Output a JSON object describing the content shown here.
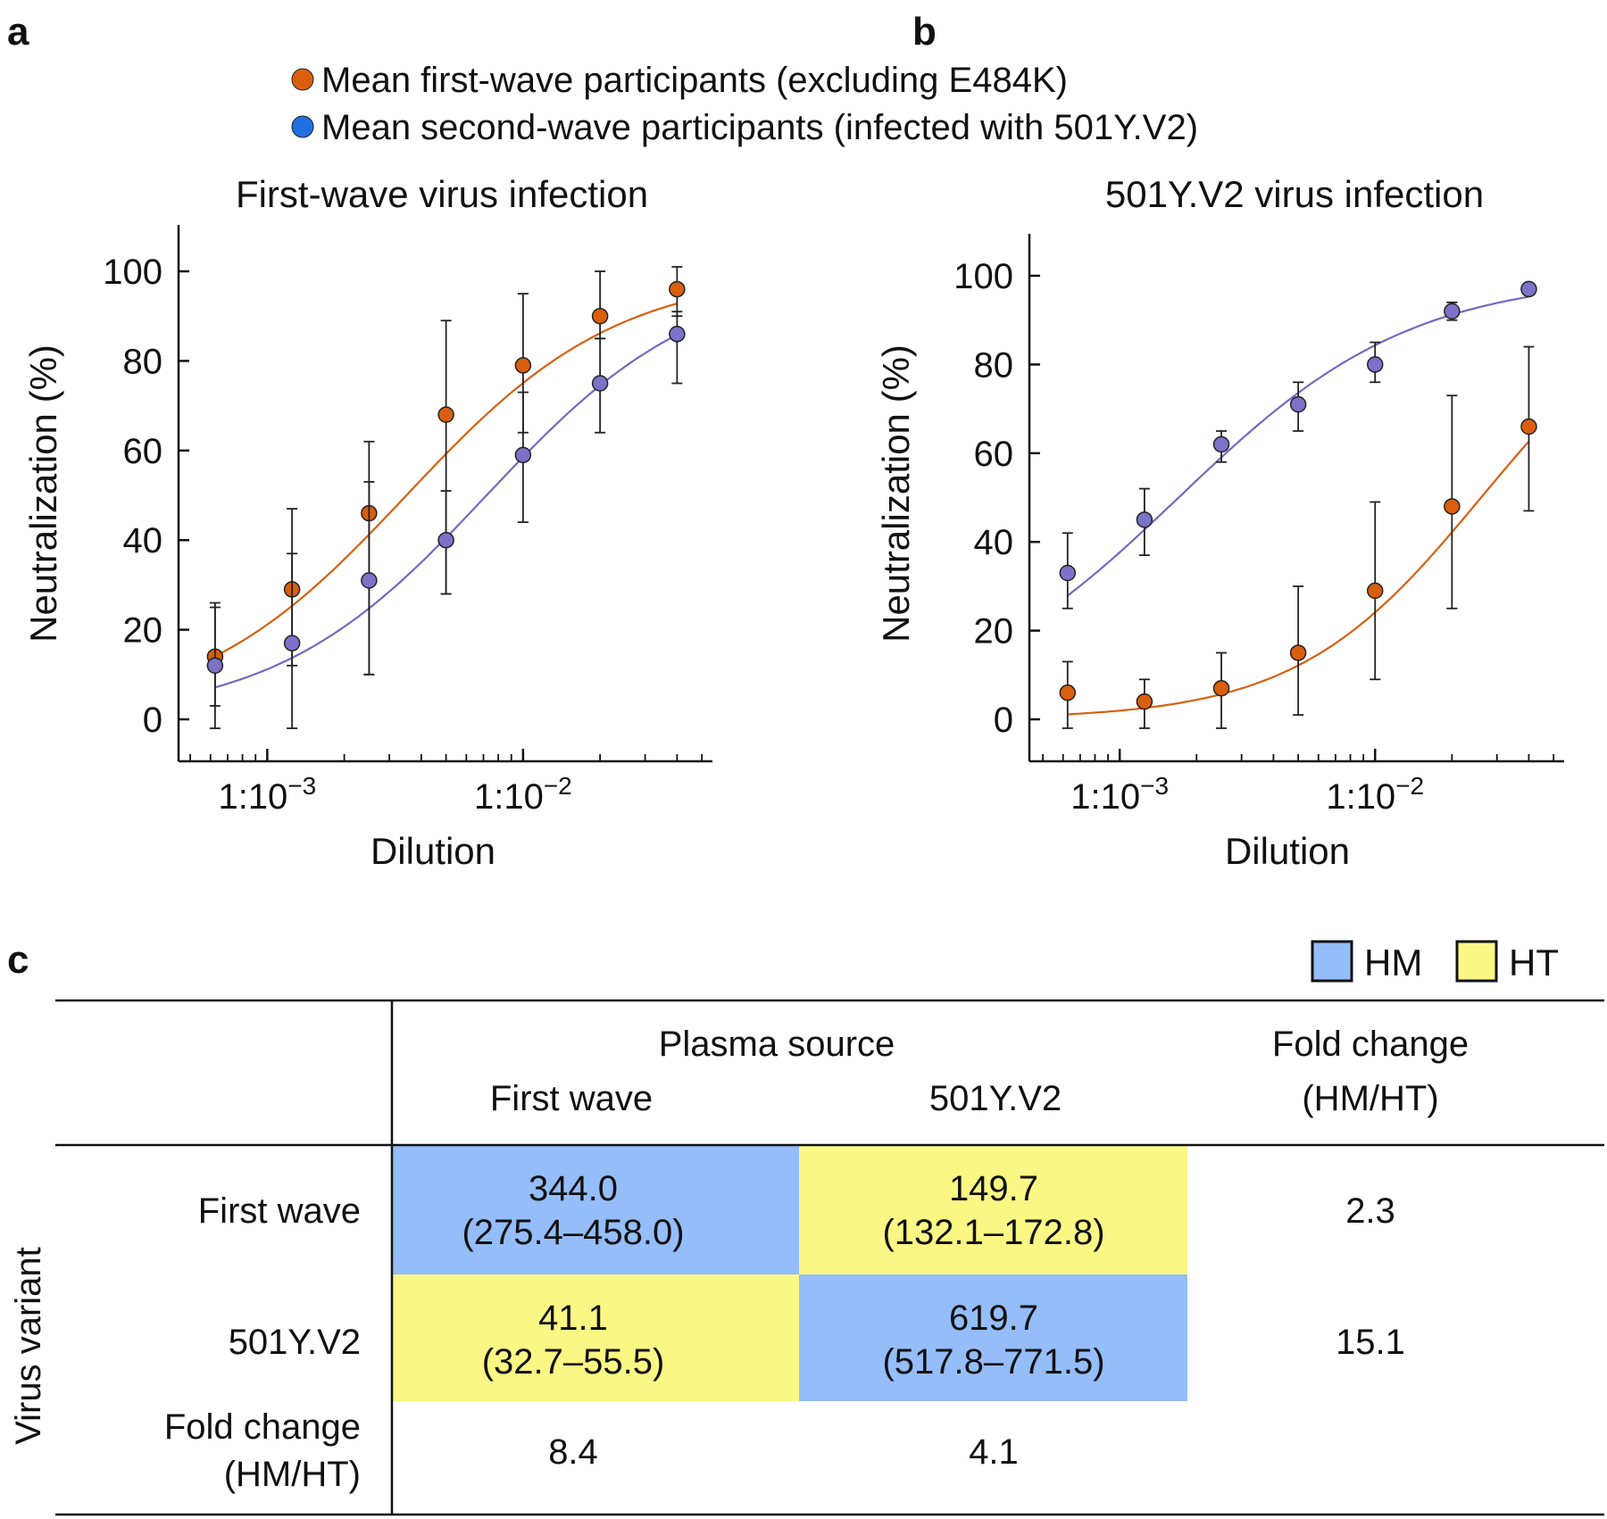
{
  "panels": {
    "a": "a",
    "b": "b",
    "c": "c"
  },
  "legend": {
    "items": [
      {
        "label": "Mean first-wave participants (excluding E484K)",
        "color": "#d95f0e"
      },
      {
        "label": "Mean second-wave participants (infected with 501Y.V2)",
        "color": "#1f6fe0"
      }
    ]
  },
  "chart_data": [
    {
      "type": "scatter",
      "title": "First-wave virus infection",
      "xlabel": "Dilution",
      "ylabel": "Neutralization (%)",
      "x_scale": "log",
      "xlim": [
        0.00045,
        0.055
      ],
      "ylim": [
        -10,
        110
      ],
      "yticks": [
        0,
        20,
        40,
        60,
        80,
        100
      ],
      "xticks": [
        {
          "value": 0.001,
          "base": "1:10",
          "exp": "−3"
        },
        {
          "value": 0.01,
          "base": "1:10",
          "exp": "−2"
        }
      ],
      "x": [
        0.000625,
        0.00125,
        0.0025,
        0.005,
        0.01,
        0.02,
        0.04
      ],
      "series": [
        {
          "name": "First-wave participants",
          "color": "#d95f0e",
          "fit_color": "#d95f0e",
          "values": [
            14,
            29,
            46,
            68,
            79,
            90,
            96
          ],
          "err_low": [
            3,
            12,
            10,
            28,
            64,
            85,
            90
          ],
          "err_high": [
            26,
            47,
            62,
            89,
            95,
            100,
            101
          ],
          "fit": {
            "ec50": 0.0035,
            "hill": 1.05
          }
        },
        {
          "name": "Second-wave participants",
          "color": "#7c72c8",
          "fit_color": "#7667c2",
          "values": [
            12,
            17,
            31,
            40,
            59,
            75,
            86
          ],
          "err_low": [
            -2,
            -2,
            10,
            28,
            44,
            64,
            75
          ],
          "err_high": [
            25,
            37,
            53,
            51,
            73,
            85,
            91
          ],
          "fit": {
            "ec50": 0.0072,
            "hill": 1.05
          }
        }
      ]
    },
    {
      "type": "scatter",
      "title": "501Y.V2 virus infection",
      "xlabel": "Dilution",
      "ylabel": "Neutralization (%)",
      "x_scale": "log",
      "xlim": [
        0.00045,
        0.055
      ],
      "ylim": [
        -10,
        110
      ],
      "yticks": [
        0,
        20,
        40,
        60,
        80,
        100
      ],
      "xticks": [
        {
          "value": 0.001,
          "base": "1:10",
          "exp": "−3"
        },
        {
          "value": 0.01,
          "base": "1:10",
          "exp": "−2"
        }
      ],
      "x": [
        0.000625,
        0.00125,
        0.0025,
        0.005,
        0.01,
        0.02,
        0.04
      ],
      "series": [
        {
          "name": "Second-wave participants",
          "color": "#7c72c8",
          "fit_color": "#7667c2",
          "values": [
            33,
            45,
            62,
            71,
            80,
            92,
            97
          ],
          "err_low": [
            25,
            37,
            58,
            65,
            76,
            90,
            96
          ],
          "err_high": [
            42,
            52,
            65,
            76,
            85,
            94,
            98
          ],
          "fit": {
            "ec50": 0.0017,
            "hill": 0.95
          }
        },
        {
          "name": "First-wave participants",
          "color": "#d95f0e",
          "fit_color": "#d95f0e",
          "values": [
            6,
            4,
            7,
            15,
            29,
            48,
            66
          ],
          "err_low": [
            -2,
            -2,
            -2,
            1,
            9,
            25,
            47
          ],
          "err_high": [
            13,
            9,
            15,
            30,
            49,
            73,
            84
          ],
          "fit": {
            "ec50": 0.026,
            "hill": 1.2
          }
        }
      ]
    },
    {
      "type": "table",
      "legend": [
        {
          "label": "HM",
          "color": "#94bdfa"
        },
        {
          "label": "HT",
          "color": "#faf784"
        }
      ],
      "header": {
        "plasma_source": "Plasma source",
        "cols": [
          "First wave",
          "501Y.V2"
        ],
        "fold_change": [
          "Fold change",
          "(HM/HT)"
        ]
      },
      "row_axis_label": "Virus variant",
      "rows": [
        {
          "label": [
            "First wave"
          ],
          "cells": [
            {
              "value": "344.0",
              "ci": "(275.4–458.0)",
              "type": "HM"
            },
            {
              "value": "149.7",
              "ci": "(132.1–172.8)",
              "type": "HT"
            }
          ],
          "fold": "2.3"
        },
        {
          "label": [
            "501Y.V2"
          ],
          "cells": [
            {
              "value": "41.1",
              "ci": "(32.7–55.5)",
              "type": "HT"
            },
            {
              "value": "619.7",
              "ci": "(517.8–771.5)",
              "type": "HM"
            }
          ],
          "fold": "15.1"
        }
      ],
      "fold_row": {
        "label": [
          "Fold change",
          "(HM/HT)"
        ],
        "values": [
          "8.4",
          "4.1"
        ]
      }
    }
  ]
}
